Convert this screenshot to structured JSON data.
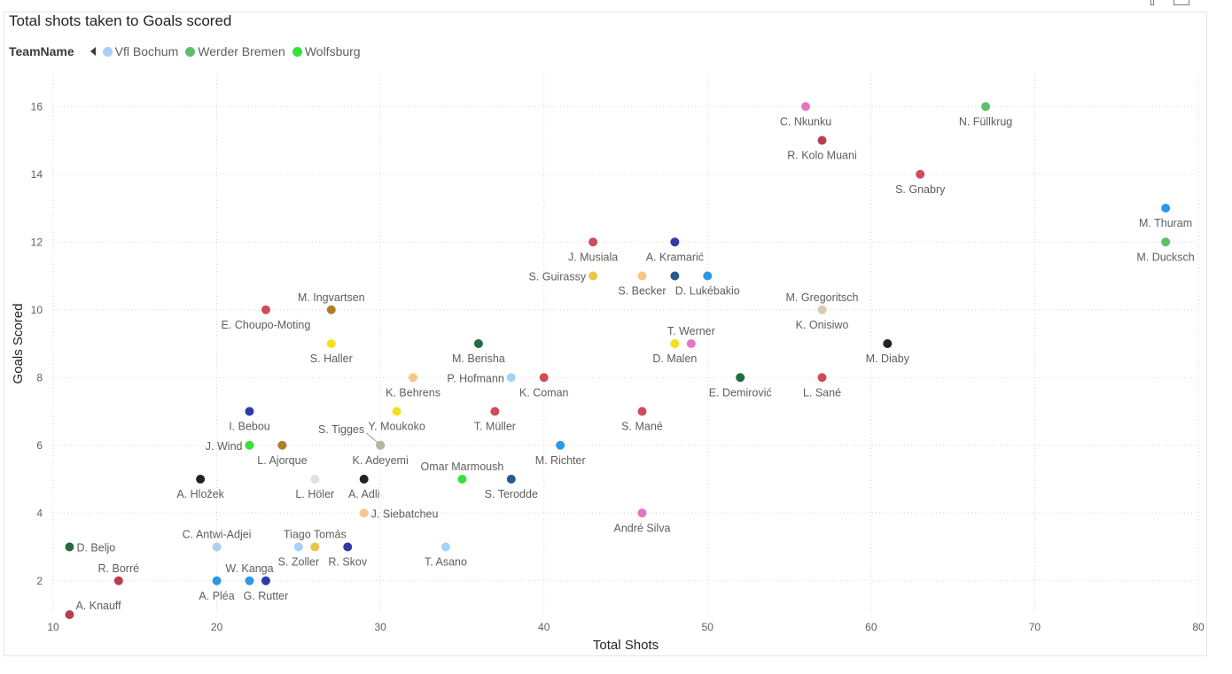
{
  "chart_data": {
    "type": "scatter",
    "title": "Total shots taken to Goals scored",
    "xlabel": "Total Shots",
    "ylabel": "Goals Scored",
    "xlim": [
      10,
      80
    ],
    "ylim": [
      1,
      17
    ],
    "xticks": [
      10,
      20,
      30,
      40,
      50,
      60,
      70,
      80
    ],
    "yticks": [
      2,
      4,
      6,
      8,
      10,
      12,
      14,
      16
    ],
    "grid": true,
    "legend": {
      "title": "TeamName",
      "placement": "top-left",
      "items": [
        {
          "name": "Vfl Bochum",
          "color": "#a7d1f7"
        },
        {
          "name": "Werder Bremen",
          "color": "#5dbf6e"
        },
        {
          "name": "Wolfsburg",
          "color": "#36e23a"
        }
      ]
    },
    "points": [
      {
        "name": "C. Nkunku",
        "x": 56,
        "y": 16,
        "color": "#e475c4",
        "pos": "below"
      },
      {
        "name": "N. Füllkrug",
        "x": 67,
        "y": 16,
        "color": "#5dbf6e",
        "pos": "below"
      },
      {
        "name": "R. Kolo Muani",
        "x": 57,
        "y": 15,
        "color": "#b5404e",
        "pos": "below"
      },
      {
        "name": "S. Gnabry",
        "x": 63,
        "y": 14,
        "color": "#d04c5a",
        "pos": "below"
      },
      {
        "name": "M. Thuram",
        "x": 78,
        "y": 13,
        "color": "#2c98ea",
        "pos": "below"
      },
      {
        "name": "M. Ducksch",
        "x": 78,
        "y": 12,
        "color": "#5dbf6e",
        "pos": "below"
      },
      {
        "name": "J. Musiala",
        "x": 43,
        "y": 12,
        "color": "#d04c5a",
        "pos": "below"
      },
      {
        "name": "A. Kramarić",
        "x": 48,
        "y": 12,
        "color": "#2e3aa8",
        "pos": "below"
      },
      {
        "name": "S. Guirassy",
        "x": 43,
        "y": 11,
        "color": "#e8c64a",
        "pos": "left"
      },
      {
        "name": "S. Becker",
        "x": 46,
        "y": 11,
        "color": "#f7c68a",
        "pos": "below"
      },
      {
        "name": "D. Lukébakio",
        "x": 50,
        "y": 11,
        "color": "#2c98ea",
        "pos": "below"
      },
      {
        "name": "",
        "x": 48,
        "y": 11,
        "color": "#285a8e",
        "pos": "none"
      },
      {
        "name": "E. Choupo-Moting",
        "x": 23,
        "y": 10,
        "color": "#d04c5a",
        "pos": "below"
      },
      {
        "name": "M. Ingvartsen",
        "x": 27,
        "y": 10,
        "color": "#b07e2a",
        "pos": "above"
      },
      {
        "name": "M. Gregoritsch",
        "x": 57,
        "y": 10,
        "color": "#d8ccb8",
        "pos": "above"
      },
      {
        "name": "K. Onisiwo",
        "x": 57,
        "y": 10,
        "color": "#d8ccb8",
        "pos": "below"
      },
      {
        "name": "S. Haller",
        "x": 27,
        "y": 9,
        "color": "#f5e01e",
        "pos": "below"
      },
      {
        "name": "M. Berisha",
        "x": 36,
        "y": 9,
        "color": "#236b40",
        "pos": "below"
      },
      {
        "name": "T. Werner",
        "x": 49,
        "y": 9,
        "color": "#e475c4",
        "pos": "above"
      },
      {
        "name": "D. Malen",
        "x": 48,
        "y": 9,
        "color": "#f5e01e",
        "pos": "below"
      },
      {
        "name": "M. Diaby",
        "x": 61,
        "y": 9,
        "color": "#222222",
        "pos": "below"
      },
      {
        "name": "K. Behrens",
        "x": 32,
        "y": 8,
        "color": "#f7c68a",
        "pos": "below"
      },
      {
        "name": "P. Hofmann",
        "x": 38,
        "y": 8,
        "color": "#a7d1f7",
        "pos": "left"
      },
      {
        "name": "K. Coman",
        "x": 40,
        "y": 8,
        "color": "#d04c5a",
        "pos": "below"
      },
      {
        "name": "E. Demirović",
        "x": 52,
        "y": 8,
        "color": "#236b40",
        "pos": "below"
      },
      {
        "name": "L. Sané",
        "x": 57,
        "y": 8,
        "color": "#d04c5a",
        "pos": "below"
      },
      {
        "name": "I. Bebou",
        "x": 22,
        "y": 7,
        "color": "#2e3aa8",
        "pos": "below"
      },
      {
        "name": "Y. Moukoko",
        "x": 31,
        "y": 7,
        "color": "#f5e01e",
        "pos": "below"
      },
      {
        "name": "T. Müller",
        "x": 37,
        "y": 7,
        "color": "#d04c5a",
        "pos": "below"
      },
      {
        "name": "S. Mané",
        "x": 46,
        "y": 7,
        "color": "#d04c5a",
        "pos": "below"
      },
      {
        "name": "J. Wind",
        "x": 22,
        "y": 6,
        "color": "#36e23a",
        "pos": "left"
      },
      {
        "name": "L. Ajorque",
        "x": 24,
        "y": 6,
        "color": "#b07e2a",
        "pos": "below"
      },
      {
        "name": "S. Tigges",
        "x": 30,
        "y": 6,
        "color": "#b8b4a0",
        "pos": "tigges"
      },
      {
        "name": "K. Adeyemi",
        "x": 30,
        "y": 6,
        "color": "#b8b4a0",
        "pos": "below"
      },
      {
        "name": "M. Richter",
        "x": 41,
        "y": 6,
        "color": "#2c98ea",
        "pos": "below"
      },
      {
        "name": "A. Hložek",
        "x": 19,
        "y": 5,
        "color": "#222222",
        "pos": "below"
      },
      {
        "name": "L. Höler",
        "x": 26,
        "y": 5,
        "color": "#e0e0e0",
        "pos": "below"
      },
      {
        "name": "A. Adli",
        "x": 29,
        "y": 5,
        "color": "#222222",
        "pos": "below"
      },
      {
        "name": "Omar Marmoush",
        "x": 35,
        "y": 5,
        "color": "#36e23a",
        "pos": "above"
      },
      {
        "name": "S. Terodde",
        "x": 38,
        "y": 5,
        "color": "#285a8e",
        "pos": "below"
      },
      {
        "name": "J. Siebatcheu",
        "x": 29,
        "y": 4,
        "color": "#f7c68a",
        "pos": "right"
      },
      {
        "name": "André Silva",
        "x": 46,
        "y": 4,
        "color": "#e475c4",
        "pos": "below"
      },
      {
        "name": "D. Beljo",
        "x": 11,
        "y": 3,
        "color": "#236b40",
        "pos": "right"
      },
      {
        "name": "C. Antwi-Adjei",
        "x": 20,
        "y": 3,
        "color": "#a7d1f7",
        "pos": "above"
      },
      {
        "name": "Tiago Tomás",
        "x": 26,
        "y": 3,
        "color": "#e8c64a",
        "pos": "above"
      },
      {
        "name": "S. Zoller",
        "x": 25,
        "y": 3,
        "color": "#a7d1f7",
        "pos": "below"
      },
      {
        "name": "R. Skov",
        "x": 28,
        "y": 3,
        "color": "#2e3aa8",
        "pos": "below"
      },
      {
        "name": "T. Asano",
        "x": 34,
        "y": 3,
        "color": "#a7d1f7",
        "pos": "below"
      },
      {
        "name": "R. Borré",
        "x": 14,
        "y": 2,
        "color": "#b5404e",
        "pos": "above"
      },
      {
        "name": "W. Kanga",
        "x": 22,
        "y": 2,
        "color": "#2c98ea",
        "pos": "above"
      },
      {
        "name": "A. Pléa",
        "x": 20,
        "y": 2,
        "color": "#2c98ea",
        "pos": "below"
      },
      {
        "name": "G. Rutter",
        "x": 23,
        "y": 2,
        "color": "#2e3aa8",
        "pos": "below"
      },
      {
        "name": "A. Knauff",
        "x": 11,
        "y": 1,
        "color": "#b5404e",
        "pos": "aboveright"
      }
    ]
  }
}
